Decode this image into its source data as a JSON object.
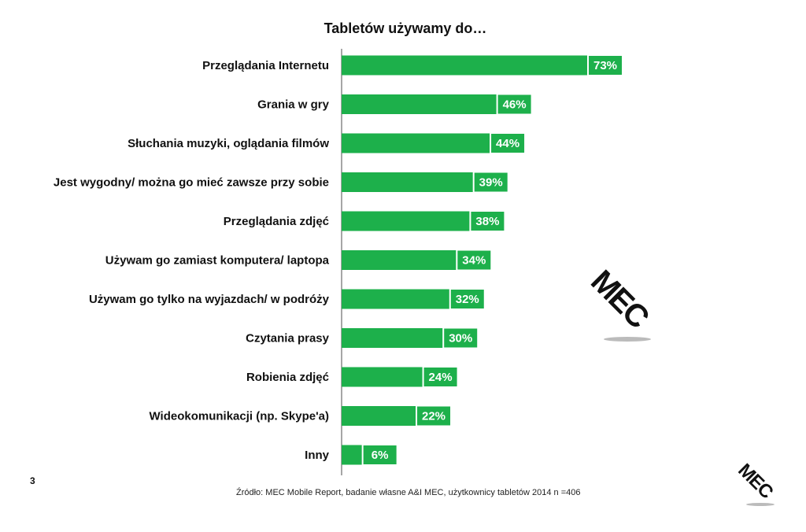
{
  "chart_data": {
    "type": "bar",
    "orientation": "horizontal",
    "title": "Tabletów używamy do…",
    "categories": [
      "Przeglądania Internetu",
      "Grania w gry",
      "Słuchania muzyki, oglądania filmów",
      "Jest wygodny/ można go mieć zawsze przy sobie",
      "Przeglądania zdjęć",
      "Używam go zamiast komputera/ laptopa",
      "Używam go tylko na wyjazdach/ w podróży",
      "Czytania prasy",
      "Robienia zdjęć",
      "Wideokomunikacji (np. Skype'a)",
      "Inny"
    ],
    "values": [
      73,
      46,
      44,
      39,
      38,
      34,
      32,
      30,
      24,
      22,
      6
    ],
    "value_labels": [
      "73%",
      "46%",
      "44%",
      "39%",
      "38%",
      "34%",
      "32%",
      "30%",
      "24%",
      "22%",
      "6%"
    ],
    "xlim": [
      0,
      100
    ],
    "grid": false,
    "colors": {
      "bar": "#1db04b",
      "label_box": "#1db04b",
      "axis": "#888888"
    }
  },
  "footer": {
    "page_number": "3",
    "source": "Źródło: MEC Mobile Report, badanie własne A&I MEC, użytkownicy tabletów  2014 n =406"
  },
  "logo": {
    "text": "MEC"
  }
}
